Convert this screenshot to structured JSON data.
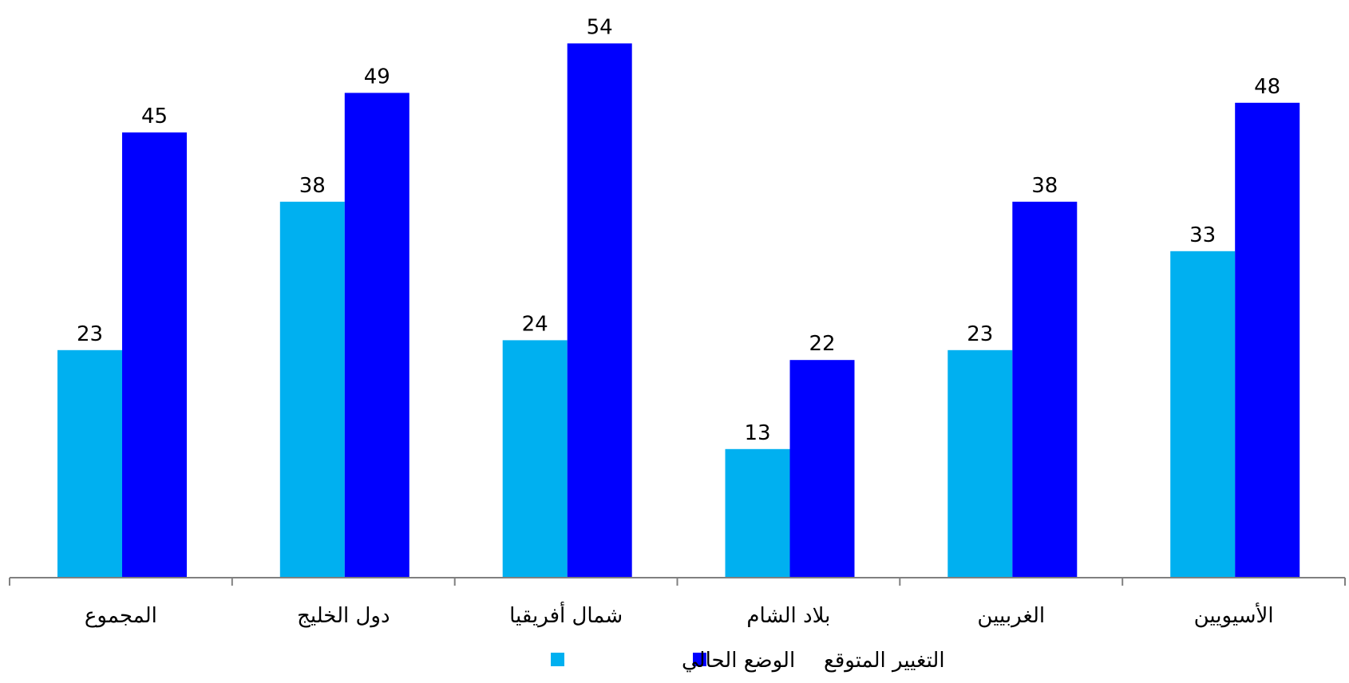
{
  "chart_data": {
    "type": "bar",
    "categories": [
      "المجموع",
      "دول الخليج",
      "شمال أفريقيا",
      "بلاد الشام",
      "الغربيين",
      "الأسيويين"
    ],
    "series": [
      {
        "name": "الوضع الحالي",
        "values": [
          23,
          38,
          24,
          13,
          23,
          33
        ],
        "color": "#00b0f0"
      },
      {
        "name": "التغيير المتوقع",
        "values": [
          45,
          49,
          54,
          22,
          38,
          48
        ],
        "color": "#0000ff"
      }
    ],
    "ylim": [
      0,
      58
    ],
    "grid": false,
    "legend": "bottom",
    "axis_color": "#808080"
  }
}
